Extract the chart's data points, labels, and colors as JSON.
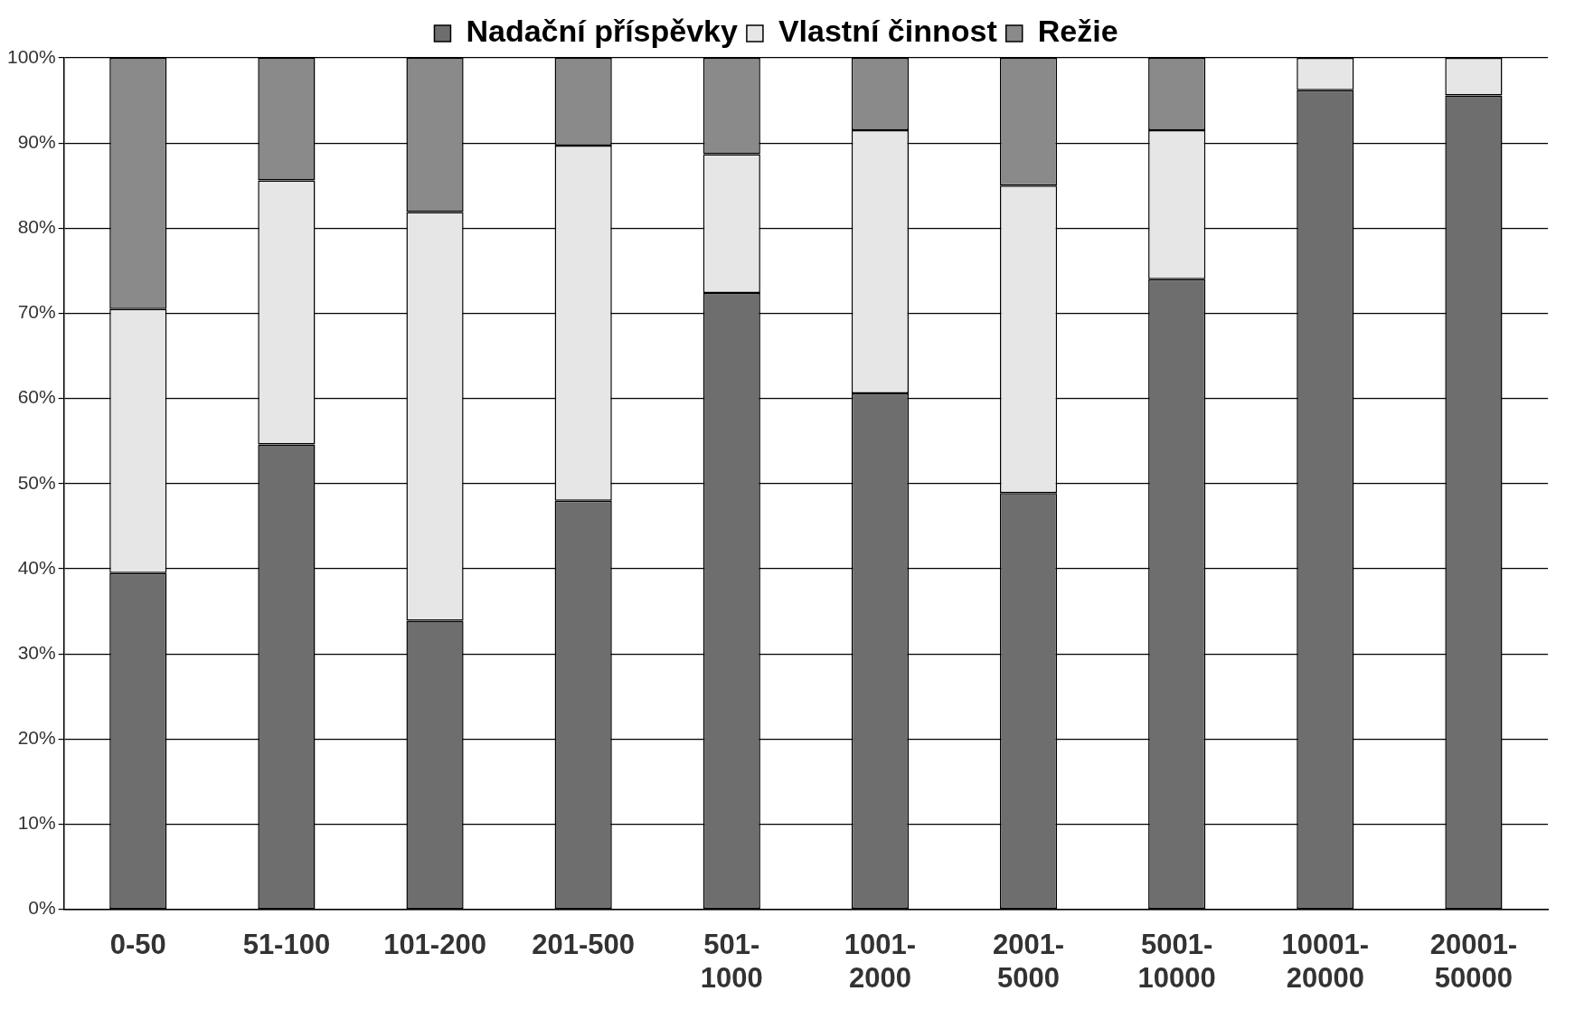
{
  "chart_data": {
    "type": "bar",
    "stacked": true,
    "legend": "top",
    "grid": "y",
    "categories": [
      "0-50",
      "51-100",
      "101-200",
      "201-500",
      "501-1000",
      "1001-2000",
      "2001-5000",
      "5001-10000",
      "10001-20000",
      "20001-50000"
    ],
    "series": [
      {
        "name": "Nadační příspěvky",
        "color": "#6e6e6e",
        "values": [
          39.5,
          54.6,
          33.9,
          48,
          72.4,
          60.6,
          48.9,
          74,
          96.2,
          95.6
        ]
      },
      {
        "name": "Vlastní činnost",
        "color": "#e6e6e6",
        "values": [
          31,
          31,
          48,
          41.7,
          16.3,
          30.9,
          36.1,
          17.5,
          3.8,
          4.4
        ]
      },
      {
        "name": "Režie",
        "color": "#8a8a8a",
        "values": [
          29.5,
          14.4,
          18.1,
          10.3,
          11.3,
          8.5,
          15,
          8.5,
          0,
          0
        ]
      }
    ],
    "ylim": [
      0,
      100
    ],
    "yticks": [
      {
        "value": 0,
        "label": "0%"
      },
      {
        "value": 10,
        "label": "10%"
      },
      {
        "value": 20,
        "label": "20%"
      },
      {
        "value": 30,
        "label": "30%"
      },
      {
        "value": 40,
        "label": "40%"
      },
      {
        "value": 50,
        "label": "50%"
      },
      {
        "value": 60,
        "label": "60%"
      },
      {
        "value": 70,
        "label": "70%"
      },
      {
        "value": 80,
        "label": "80%"
      },
      {
        "value": 90,
        "label": "90%"
      },
      {
        "value": 100,
        "label": "100%"
      }
    ]
  }
}
